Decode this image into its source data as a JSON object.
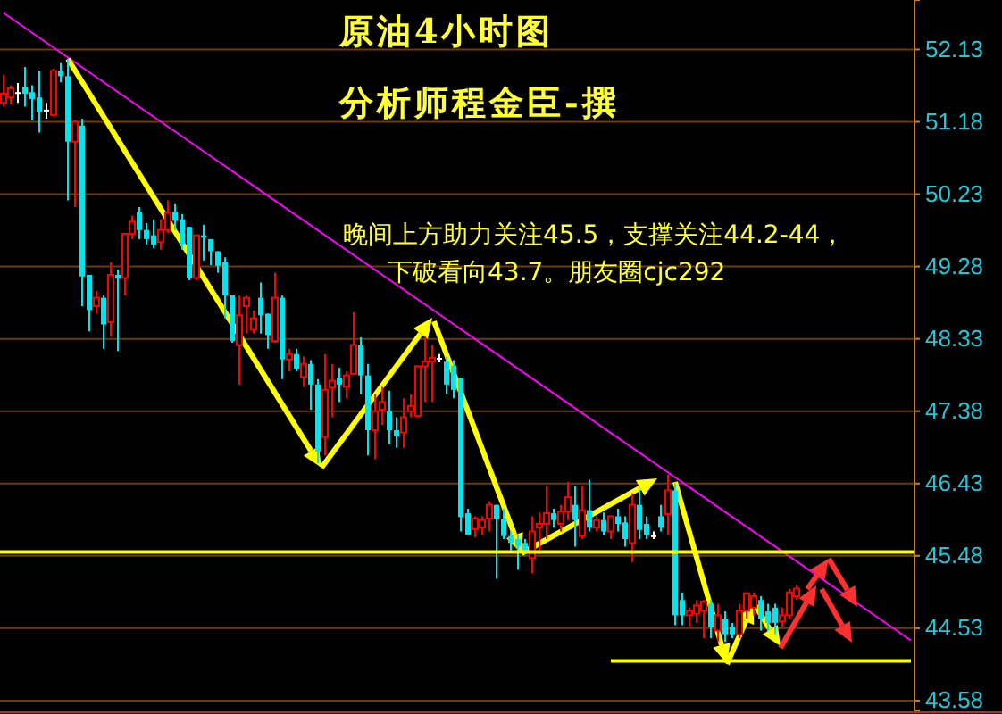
{
  "chart_data": {
    "type": "candlestick",
    "title": "原油4小时图",
    "subtitle": "分析师程金臣-撰",
    "annotations": [
      "晚间上方助力关注45.5，支撑关注44.2-44，",
      "下破看向43.7。朋友圈cjc292"
    ],
    "categories": [
      null,
      null,
      null,
      null,
      null,
      null,
      null,
      null,
      null,
      null,
      null,
      null,
      null,
      null,
      null,
      null,
      null,
      null,
      null,
      null,
      null,
      null,
      null,
      null,
      null,
      null,
      null,
      null,
      null,
      null,
      null,
      null,
      null,
      null,
      null,
      null,
      null,
      null,
      null,
      null,
      null,
      null,
      null,
      null,
      null,
      null,
      null,
      null,
      null,
      null,
      null,
      null,
      null,
      null,
      null,
      null,
      null,
      null,
      null,
      null,
      null,
      null,
      null,
      null,
      null,
      null,
      null,
      null,
      null,
      null,
      null,
      null,
      null,
      null,
      null,
      null,
      null,
      null,
      null,
      null,
      null,
      null,
      null,
      null,
      null,
      null,
      null,
      null,
      null,
      null,
      null,
      null,
      null,
      null,
      null,
      null,
      null,
      null,
      null,
      null,
      null,
      null,
      null,
      null,
      null,
      null,
      null,
      null,
      null,
      null,
      null,
      null,
      null,
      null,
      null,
      null,
      null,
      null,
      null,
      null,
      null,
      null,
      null,
      null,
      null,
      null,
      null,
      null
    ],
    "ohlc": [
      [
        51.43,
        51.8,
        51.38,
        51.55
      ],
      [
        51.5,
        51.66,
        51.41,
        51.62
      ],
      [
        51.57,
        51.69,
        51.43,
        51.57
      ],
      [
        51.64,
        51.9,
        51.38,
        51.55
      ],
      [
        51.57,
        51.66,
        51.2,
        51.48
      ],
      [
        51.5,
        51.85,
        51.04,
        51.31
      ],
      [
        51.34,
        51.43,
        51.22,
        51.34
      ],
      [
        51.27,
        51.88,
        51.25,
        51.85
      ],
      [
        51.85,
        51.95,
        51.7,
        51.78
      ],
      [
        51.78,
        52.01,
        50.15,
        50.92
      ],
      [
        50.92,
        51.2,
        50.06,
        51.18
      ],
      [
        51.13,
        51.22,
        48.76,
        49.15
      ],
      [
        49.17,
        49.17,
        48.43,
        48.71
      ],
      [
        48.76,
        48.96,
        48.66,
        48.87
      ],
      [
        48.87,
        48.9,
        48.2,
        48.52
      ],
      [
        48.55,
        49.34,
        48.36,
        49.17
      ],
      [
        49.17,
        49.24,
        48.17,
        49.12
      ],
      [
        49.13,
        49.71,
        48.9,
        49.71
      ],
      [
        49.71,
        49.95,
        49.64,
        49.87
      ],
      [
        49.99,
        50.06,
        49.64,
        49.76
      ],
      [
        49.76,
        49.85,
        49.57,
        49.64
      ],
      [
        49.69,
        49.9,
        49.52,
        49.57
      ],
      [
        49.6,
        49.9,
        49.5,
        49.76
      ],
      [
        49.76,
        50.15,
        49.72,
        49.99
      ],
      [
        50.0,
        50.1,
        49.76,
        49.88
      ],
      [
        49.9,
        49.97,
        49.5,
        49.57
      ],
      [
        49.8,
        49.8,
        49.1,
        49.13
      ],
      [
        49.13,
        49.69,
        49.1,
        49.69
      ],
      [
        49.69,
        49.83,
        49.36,
        49.66
      ],
      [
        49.64,
        49.64,
        49.3,
        49.48
      ],
      [
        49.48,
        49.48,
        49.2,
        49.29
      ],
      [
        49.34,
        49.4,
        48.6,
        48.9
      ],
      [
        48.9,
        48.9,
        48.28,
        48.3
      ],
      [
        48.25,
        48.9,
        47.73,
        48.64
      ],
      [
        48.76,
        48.9,
        48.4,
        48.87
      ],
      [
        48.45,
        48.7,
        48.4,
        48.6
      ],
      [
        48.87,
        49.07,
        48.4,
        48.64
      ],
      [
        48.66,
        48.66,
        48.2,
        48.38
      ],
      [
        48.3,
        49.2,
        48.28,
        48.87
      ],
      [
        48.87,
        48.9,
        47.8,
        48.06
      ],
      [
        48.06,
        48.2,
        47.9,
        48.13
      ],
      [
        48.13,
        48.2,
        47.9,
        47.94
      ],
      [
        47.83,
        48.1,
        47.7,
        48.0
      ],
      [
        48.0,
        48.05,
        47.4,
        47.73
      ],
      [
        47.73,
        47.8,
        46.7,
        46.85
      ],
      [
        47.04,
        48.13,
        46.8,
        47.66
      ],
      [
        47.69,
        48.0,
        47.3,
        47.78
      ],
      [
        47.82,
        47.95,
        47.5,
        47.73
      ],
      [
        47.7,
        47.9,
        47.55,
        47.85
      ],
      [
        47.87,
        48.68,
        47.87,
        48.25
      ],
      [
        48.25,
        48.35,
        47.6,
        47.85
      ],
      [
        47.85,
        48.0,
        46.8,
        47.13
      ],
      [
        47.13,
        47.6,
        46.75,
        47.38
      ],
      [
        47.4,
        47.7,
        47.2,
        47.5
      ],
      [
        47.38,
        47.65,
        46.95,
        47.13
      ],
      [
        47.13,
        47.3,
        46.9,
        47.05
      ],
      [
        47.1,
        47.55,
        46.9,
        47.3
      ],
      [
        47.38,
        47.6,
        47.3,
        47.45
      ],
      [
        47.32,
        47.97,
        47.3,
        47.97
      ],
      [
        47.97,
        48.36,
        47.5,
        48.03
      ],
      [
        48.03,
        48.25,
        47.5,
        48.08
      ],
      [
        48.08,
        48.13,
        48.02,
        48.08
      ],
      [
        48.03,
        48.1,
        47.6,
        47.73
      ],
      [
        47.98,
        48.05,
        47.55,
        47.66
      ],
      [
        47.82,
        47.82,
        45.8,
        45.99
      ],
      [
        46.04,
        46.1,
        45.76,
        45.76
      ],
      [
        45.83,
        46.0,
        45.72,
        45.97
      ],
      [
        45.85,
        46.0,
        45.75,
        45.95
      ],
      [
        45.97,
        46.2,
        45.8,
        46.15
      ],
      [
        46.15,
        46.15,
        45.18,
        45.97
      ],
      [
        45.97,
        46.1,
        45.7,
        45.74
      ],
      [
        45.74,
        45.8,
        45.55,
        45.65
      ],
      [
        45.7,
        45.75,
        45.3,
        45.6
      ],
      [
        45.65,
        45.7,
        45.5,
        45.55
      ],
      [
        45.45,
        46.0,
        45.25,
        45.8
      ],
      [
        45.85,
        46.05,
        45.5,
        45.9
      ],
      [
        45.9,
        46.4,
        45.7,
        46.04
      ],
      [
        46.04,
        46.1,
        45.85,
        45.95
      ],
      [
        45.9,
        46.15,
        45.8,
        46.06
      ],
      [
        46.06,
        46.45,
        45.95,
        46.25
      ],
      [
        46.15,
        46.4,
        45.6,
        45.95
      ],
      [
        45.74,
        46.4,
        45.7,
        46.08
      ],
      [
        46.08,
        46.48,
        45.8,
        45.85
      ],
      [
        45.85,
        46.0,
        45.8,
        45.95
      ],
      [
        45.95,
        46.05,
        45.75,
        45.8
      ],
      [
        45.8,
        46.0,
        45.7,
        46.0
      ],
      [
        46.0,
        46.1,
        45.8,
        45.9
      ],
      [
        45.92,
        46.0,
        45.6,
        45.7
      ],
      [
        45.65,
        46.3,
        45.4,
        46.15
      ],
      [
        46.15,
        46.35,
        45.7,
        45.82
      ],
      [
        45.9,
        46.0,
        45.7,
        45.75
      ],
      [
        45.75,
        45.8,
        45.7,
        45.75
      ],
      [
        46.0,
        46.15,
        45.8,
        45.85
      ],
      [
        46.03,
        46.55,
        45.75,
        46.34
      ],
      [
        46.34,
        46.43,
        44.57,
        44.7
      ],
      [
        44.9,
        45.0,
        44.57,
        44.7
      ],
      [
        44.7,
        44.8,
        44.55,
        44.76
      ],
      [
        44.72,
        44.9,
        44.6,
        44.83
      ],
      [
        44.76,
        44.9,
        44.4,
        44.88
      ],
      [
        44.85,
        44.9,
        44.4,
        44.55
      ],
      [
        44.5,
        44.85,
        44.35,
        44.7
      ],
      [
        44.65,
        44.75,
        44.35,
        44.45
      ],
      [
        44.55,
        44.6,
        44.4,
        44.45
      ],
      [
        44.45,
        44.85,
        44.4,
        44.76
      ],
      [
        44.76,
        45.0,
        44.66,
        44.99
      ],
      [
        44.8,
        45.0,
        44.7,
        44.95
      ],
      [
        44.9,
        44.95,
        44.5,
        44.65
      ],
      [
        44.75,
        44.85,
        44.5,
        44.6
      ],
      [
        44.8,
        44.85,
        44.45,
        44.6
      ],
      [
        44.62,
        44.8,
        44.55,
        44.7
      ],
      [
        44.7,
        45.05,
        44.65,
        45.0
      ],
      [
        44.95,
        45.1,
        44.9,
        45.05
      ],
      null,
      null,
      null,
      null,
      null,
      null,
      null,
      null,
      null,
      null,
      null,
      null,
      null,
      null,
      null,
      null
    ],
    "colors": [
      "#ff0000",
      "#ff0000",
      "#ffffff",
      "#00e5ee",
      "#00e5ee",
      "#00e5ee",
      "#ffffff",
      "#ff0000",
      "#00e5ee",
      "#00e5ee",
      "#ff0000",
      "#00e5ee",
      "#00e5ee",
      "#ff0000",
      "#00e5ee",
      "#ff0000",
      "#00e5ee",
      "#ff0000",
      "#ff0000",
      "#00e5ee",
      "#00e5ee",
      "#00e5ee",
      "#ff0000",
      "#ff0000",
      "#00e5ee",
      "#00e5ee",
      "#00e5ee",
      "#ff0000",
      "#00e5ee",
      "#00e5ee",
      "#00e5ee",
      "#00e5ee",
      "#00e5ee",
      "#ff0000",
      "#ff0000",
      "#ff0000",
      "#00e5ee",
      "#00e5ee",
      "#ff0000",
      "#00e5ee",
      "#ff0000",
      "#00e5ee",
      "#ff0000",
      "#00e5ee",
      "#00e5ee",
      "#ff0000",
      "#ff0000",
      "#00e5ee",
      "#ff0000",
      "#ff0000",
      "#00e5ee",
      "#00e5ee",
      "#ff0000",
      "#ff0000",
      "#00e5ee",
      "#00e5ee",
      "#ff0000",
      "#ff0000",
      "#ff0000",
      "#ff0000",
      "#ff0000",
      "#ffffff",
      "#00e5ee",
      "#00e5ee",
      "#00e5ee",
      "#00e5ee",
      "#ff0000",
      "#ff0000",
      "#ff0000",
      "#00e5ee",
      "#00e5ee",
      "#00e5ee",
      "#00e5ee",
      "#00e5ee",
      "#ff0000",
      "#ff0000",
      "#ff0000",
      "#00e5ee",
      "#ff0000",
      "#ff0000",
      "#00e5ee",
      "#ff0000",
      "#00e5ee",
      "#ff0000",
      "#00e5ee",
      "#ff0000",
      "#00e5ee",
      "#00e5ee",
      "#ff0000",
      "#00e5ee",
      "#00e5ee",
      "#ffffff",
      "#00e5ee",
      "#ff0000",
      "#00e5ee",
      "#00e5ee",
      "#ff0000",
      "#ff0000",
      "#ff0000",
      "#00e5ee",
      "#ff0000",
      "#00e5ee",
      "#00e5ee",
      "#ff0000",
      "#ff0000",
      "#ff0000",
      "#00e5ee",
      "#00e5ee",
      "#00e5ee",
      "#ff0000",
      "#ff0000",
      "#ff0000",
      null,
      null,
      null,
      null,
      null,
      null,
      null,
      null,
      null,
      null,
      null,
      null,
      null,
      null,
      null,
      null
    ],
    "series": [
      {
        "type": "line",
        "color": "#ff00ff",
        "values": [
          52.61,
          null,
          null,
          null,
          null,
          null,
          null,
          null,
          null,
          null,
          null,
          null,
          null,
          null,
          null,
          null,
          null,
          null,
          null,
          null,
          null,
          null,
          null,
          null,
          null,
          null,
          null,
          null,
          null,
          null,
          null,
          null,
          null,
          null,
          null,
          null,
          null,
          null,
          null,
          null,
          null,
          null,
          null,
          null,
          null,
          null,
          null,
          null,
          null,
          null,
          null,
          null,
          null,
          null,
          null,
          null,
          null,
          null,
          null,
          null,
          null,
          null,
          null,
          null,
          null,
          null,
          null,
          null,
          null,
          null,
          null,
          null,
          null,
          null,
          null,
          null,
          null,
          null,
          null,
          null,
          null,
          null,
          null,
          null,
          null,
          null,
          null,
          null,
          null,
          null,
          null,
          null,
          null,
          null,
          null,
          null,
          null,
          null,
          null,
          null,
          null,
          null,
          null,
          null,
          null,
          null,
          null,
          null,
          null,
          null,
          null,
          null,
          null,
          null,
          null,
          null,
          null,
          null,
          null,
          null,
          null,
          null,
          null,
          null,
          null,
          null,
          null,
          44.37
        ]
      },
      {
        "type": "line",
        "color": "#ffff00",
        "values": [
          null,
          null,
          null,
          null,
          null,
          null,
          null,
          null,
          null,
          null,
          null,
          null,
          null,
          null,
          null,
          null,
          null,
          null,
          null,
          null,
          null,
          null,
          null,
          null,
          null,
          null,
          null,
          null,
          null,
          null,
          null,
          null,
          null,
          null,
          null,
          null,
          null,
          null,
          null,
          null,
          null,
          null,
          null,
          null,
          null,
          null,
          null,
          null,
          null,
          null,
          null,
          null,
          null,
          null,
          null,
          null,
          null,
          null,
          null,
          null,
          null,
          null,
          null,
          null,
          null,
          null,
          null,
          null,
          null,
          null,
          null,
          null,
          null,
          null,
          null,
          null,
          null,
          null,
          null,
          null,
          null,
          null,
          null,
          null,
          null,
          44.1,
          null,
          null,
          null,
          null,
          null,
          null,
          null,
          null,
          null,
          null,
          null,
          null,
          null,
          null,
          null,
          null,
          null,
          null,
          null,
          null,
          null,
          null,
          null,
          null,
          null,
          null,
          null,
          null,
          null,
          null,
          null,
          null,
          null,
          null,
          null,
          null,
          null,
          null,
          null,
          null,
          null,
          44.1
        ]
      }
    ],
    "ref_lines": [
      {
        "axis": "y",
        "value": 45.53,
        "color": "#ffff00"
      }
    ],
    "ylim": [
      43.45,
      52.78
    ],
    "yticks": [
      52.13,
      51.18,
      50.23,
      49.28,
      48.33,
      47.38,
      46.43,
      45.48,
      44.53,
      43.58
    ],
    "grid": "y",
    "tick_labels": "y"
  }
}
